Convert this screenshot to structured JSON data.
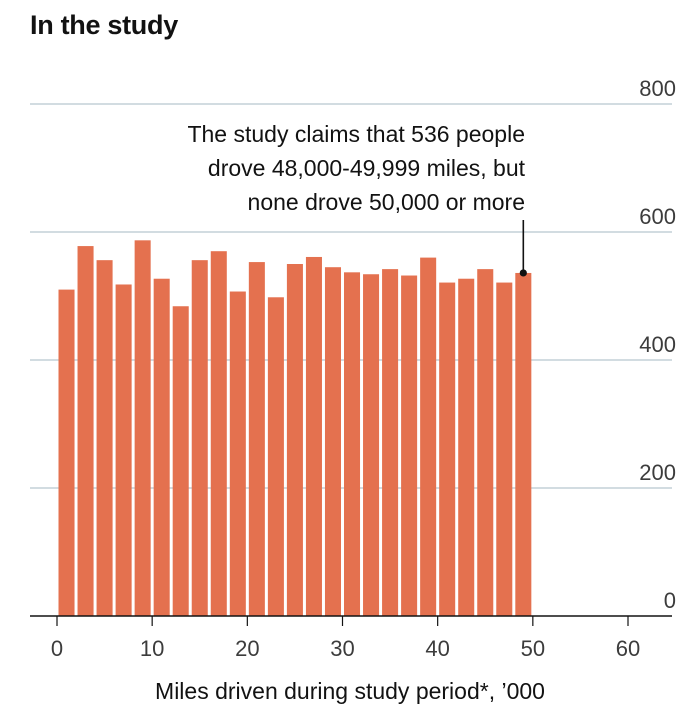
{
  "title": "In the study",
  "annotation_lines": [
    "The study claims that 536 people",
    "drove 48,000-49,999 miles, but",
    "none drove 50,000 or more"
  ],
  "colors": {
    "bar": "#e4714f",
    "grid": "#b7c6cf",
    "axis": "#121212"
  },
  "chart_data": {
    "type": "bar",
    "title": "In the study",
    "xlabel": "Miles driven during study period*, ’000",
    "ylabel": "",
    "xlim": [
      -2,
      63
    ],
    "ylim": [
      0,
      800
    ],
    "x_ticks": [
      0,
      10,
      20,
      30,
      40,
      50,
      60
    ],
    "y_ticks": [
      0,
      200,
      400,
      600,
      800
    ],
    "bin_width": 2,
    "bins_start": [
      0,
      2,
      4,
      6,
      8,
      10,
      12,
      14,
      16,
      18,
      20,
      22,
      24,
      26,
      28,
      30,
      32,
      34,
      36,
      38,
      40,
      42,
      44,
      46,
      48
    ],
    "values": [
      510,
      578,
      556,
      518,
      587,
      527,
      484,
      556,
      570,
      507,
      553,
      498,
      550,
      561,
      545,
      537,
      534,
      542,
      532,
      560,
      521,
      527,
      542,
      521,
      536
    ],
    "grid": true,
    "y_axis_side": "right"
  }
}
